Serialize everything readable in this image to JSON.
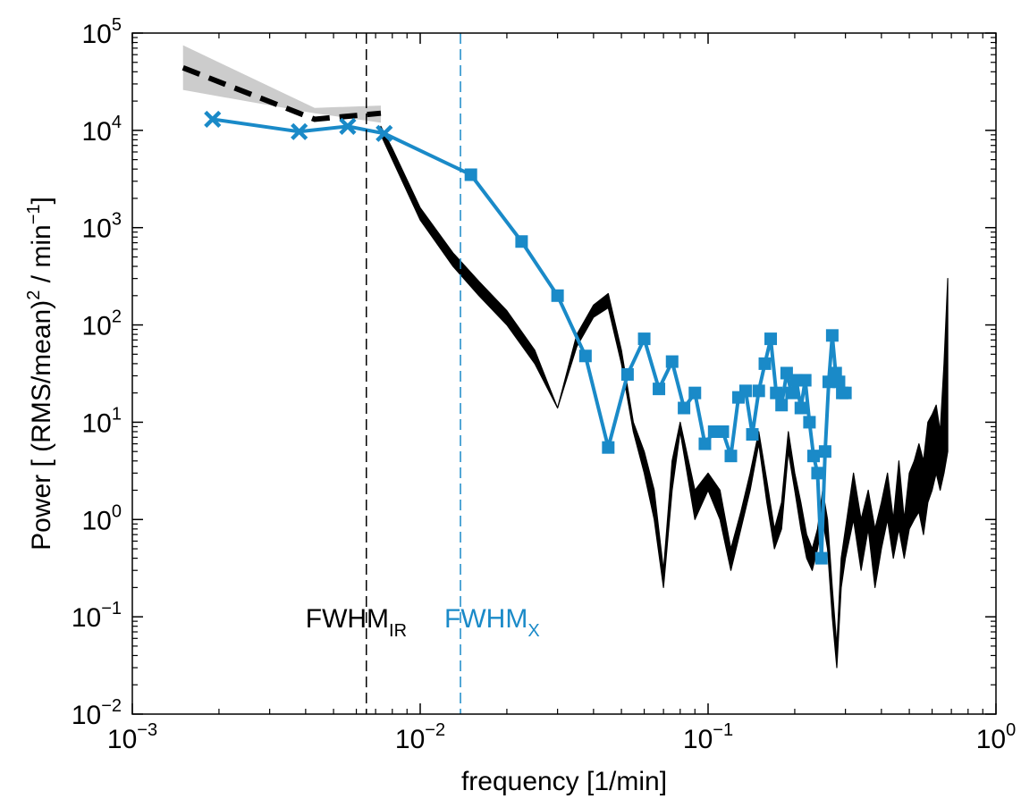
{
  "chart_data": {
    "type": "line",
    "xlabel": "frequency [1/min]",
    "ylabel": {
      "prefix": "Power [ (RMS/mean)",
      "sup1": "2",
      "middle": " / min",
      "sup2": "−1",
      "suffix": "]"
    },
    "x_scale": "log",
    "y_scale": "log",
    "xlim": [
      0.001,
      1
    ],
    "ylim": [
      0.01,
      100000
    ],
    "x_ticks": [
      {
        "value": 0.001,
        "base": "10",
        "exp": "−3"
      },
      {
        "value": 0.01,
        "base": "10",
        "exp": "−2"
      },
      {
        "value": 0.1,
        "base": "10",
        "exp": "−1"
      },
      {
        "value": 1,
        "base": "10",
        "exp": "0"
      }
    ],
    "y_ticks": [
      {
        "value": 0.01,
        "base": "10",
        "exp": "−2"
      },
      {
        "value": 0.1,
        "base": "10",
        "exp": "−1"
      },
      {
        "value": 1,
        "base": "10",
        "exp": "0"
      },
      {
        "value": 10,
        "base": "10",
        "exp": "1"
      },
      {
        "value": 100,
        "base": "10",
        "exp": "2"
      },
      {
        "value": 1000,
        "base": "10",
        "exp": "3"
      },
      {
        "value": 10000,
        "base": "10",
        "exp": "4"
      },
      {
        "value": 100000,
        "base": "10",
        "exp": "5"
      }
    ],
    "vlines": [
      {
        "x": 0.0065,
        "color": "#000000",
        "label": "FWHM",
        "sub": "IR",
        "label_y": 0.1
      },
      {
        "x": 0.0138,
        "color": "#1a8ac8",
        "label": "FWHM",
        "sub": "X",
        "label_y": 0.1
      }
    ],
    "series": [
      {
        "style": "dashed-band",
        "color": "#000000",
        "band_color": "#cccccc",
        "x": [
          0.0015,
          0.0043,
          0.0073
        ],
        "y": [
          44000,
          13000,
          15000
        ],
        "y_low": [
          26000,
          15000,
          12000
        ],
        "y_high": [
          75000,
          17000,
          18000
        ]
      },
      {
        "style": "black-band",
        "color": "#000000",
        "x": [
          0.0073,
          0.008,
          0.01,
          0.013,
          0.016,
          0.02,
          0.025,
          0.03,
          0.035,
          0.04,
          0.045,
          0.05,
          0.055,
          0.06,
          0.065,
          0.07,
          0.075,
          0.08,
          0.09,
          0.1,
          0.11,
          0.12,
          0.13,
          0.14,
          0.15,
          0.16,
          0.17,
          0.18,
          0.19,
          0.2,
          0.21,
          0.22,
          0.23,
          0.24,
          0.25,
          0.26,
          0.27,
          0.28,
          0.29,
          0.3,
          0.32,
          0.34,
          0.36,
          0.38,
          0.4,
          0.42,
          0.44,
          0.46,
          0.48,
          0.5,
          0.52,
          0.54,
          0.56,
          0.58,
          0.6,
          0.62,
          0.64,
          0.66,
          0.68
        ],
        "y_low": [
          9000,
          5000,
          1200,
          400,
          200,
          100,
          40,
          14,
          60,
          120,
          150,
          40,
          8,
          3,
          1,
          0.2,
          2,
          8,
          1,
          2,
          1,
          0.3,
          0.8,
          2,
          6,
          1.5,
          0.5,
          0.8,
          5,
          2,
          0.8,
          0.4,
          0.3,
          0.5,
          1,
          0.5,
          0.1,
          0.03,
          0.2,
          0.4,
          1,
          0.3,
          0.8,
          0.2,
          0.5,
          1,
          0.4,
          0.8,
          0.4,
          0.8,
          1,
          1.2,
          0.7,
          1.5,
          2,
          3,
          2,
          3,
          5
        ],
        "y_high": [
          11000,
          6500,
          1600,
          550,
          280,
          140,
          55,
          14,
          80,
          160,
          210,
          55,
          10,
          5,
          2,
          0.3,
          4,
          10,
          2,
          3,
          2,
          0.5,
          1.2,
          3,
          8,
          2.5,
          0.8,
          1.5,
          8,
          3,
          1.5,
          0.7,
          0.5,
          0.8,
          2,
          1,
          0.2,
          0.05,
          0.4,
          0.8,
          3,
          1,
          2,
          0.8,
          1.5,
          3,
          1,
          4,
          1,
          3,
          4,
          6,
          4,
          10,
          12,
          15,
          8,
          40,
          300
        ]
      },
      {
        "style": "blue-markers",
        "color": "#1a8ac8",
        "x_points": [
          0.0019,
          0.0038,
          0.0056,
          0.0075
        ],
        "x_points_y": [
          13000,
          9700,
          11000,
          9300
        ],
        "x": [
          0.0075,
          0.015,
          0.0225,
          0.03,
          0.0375,
          0.045,
          0.0525,
          0.06,
          0.0675,
          0.075,
          0.0825,
          0.09,
          0.0975,
          0.105,
          0.1125,
          0.12,
          0.1275,
          0.135,
          0.1425,
          0.15,
          0.1575,
          0.165,
          0.1725,
          0.18,
          0.1875,
          0.195,
          0.2025,
          0.21,
          0.2175,
          0.225,
          0.2325,
          0.24,
          0.2475,
          0.255,
          0.2625,
          0.27,
          0.2775,
          0.285,
          0.2925,
          0.3
        ],
        "y": [
          9300,
          3500,
          720,
          200,
          48,
          5.5,
          31,
          72,
          22,
          42,
          14,
          20,
          6,
          8,
          8,
          4.5,
          18,
          21,
          7.5,
          21,
          40,
          72,
          20,
          15,
          32,
          20,
          27,
          14,
          27,
          10,
          4.5,
          3,
          0.4,
          5,
          26,
          78,
          32,
          26,
          20,
          20
        ]
      }
    ]
  }
}
